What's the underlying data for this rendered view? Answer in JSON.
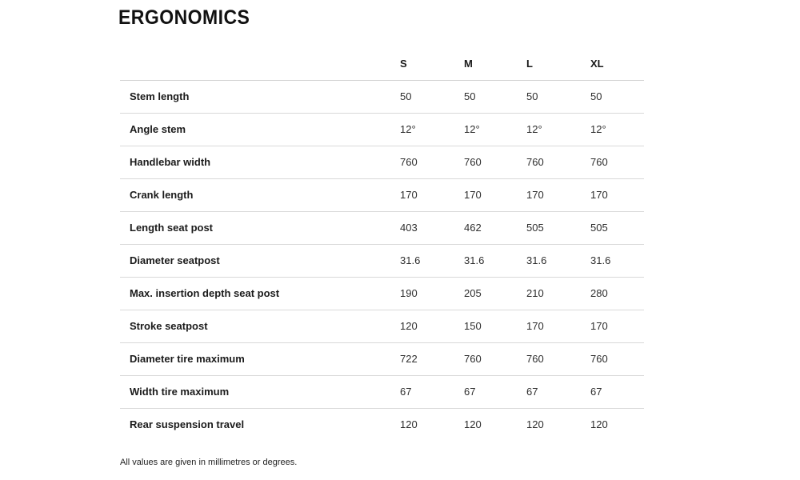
{
  "page": {
    "title": "ERGONOMICS",
    "footnote": "All values are given in millimetres or degrees."
  },
  "table": {
    "columns": [
      "S",
      "M",
      "L",
      "XL"
    ],
    "rows": [
      {
        "label": "Stem length",
        "values": [
          "50",
          "50",
          "50",
          "50"
        ]
      },
      {
        "label": "Angle stem",
        "values": [
          "12°",
          "12°",
          "12°",
          "12°"
        ]
      },
      {
        "label": "Handlebar width",
        "values": [
          "760",
          "760",
          "760",
          "760"
        ]
      },
      {
        "label": "Crank length",
        "values": [
          "170",
          "170",
          "170",
          "170"
        ]
      },
      {
        "label": "Length seat post",
        "values": [
          "403",
          "462",
          "505",
          "505"
        ]
      },
      {
        "label": "Diameter seatpost",
        "values": [
          "31.6",
          "31.6",
          "31.6",
          "31.6"
        ]
      },
      {
        "label": "Max. insertion depth seat post",
        "values": [
          "190",
          "205",
          "210",
          "280"
        ]
      },
      {
        "label": "Stroke seatpost",
        "values": [
          "120",
          "150",
          "170",
          "170"
        ]
      },
      {
        "label": "Diameter tire maximum",
        "values": [
          "722",
          "760",
          "760",
          "760"
        ]
      },
      {
        "label": "Width tire maximum",
        "values": [
          "67",
          "67",
          "67",
          "67"
        ]
      },
      {
        "label": "Rear suspension travel",
        "values": [
          "120",
          "120",
          "120",
          "120"
        ]
      }
    ]
  },
  "colors": {
    "background": "#ffffff",
    "title_text": "#111111",
    "label_text": "#1b1b1b",
    "value_text": "#2e2e2e",
    "divider": "#d9d9d9"
  }
}
